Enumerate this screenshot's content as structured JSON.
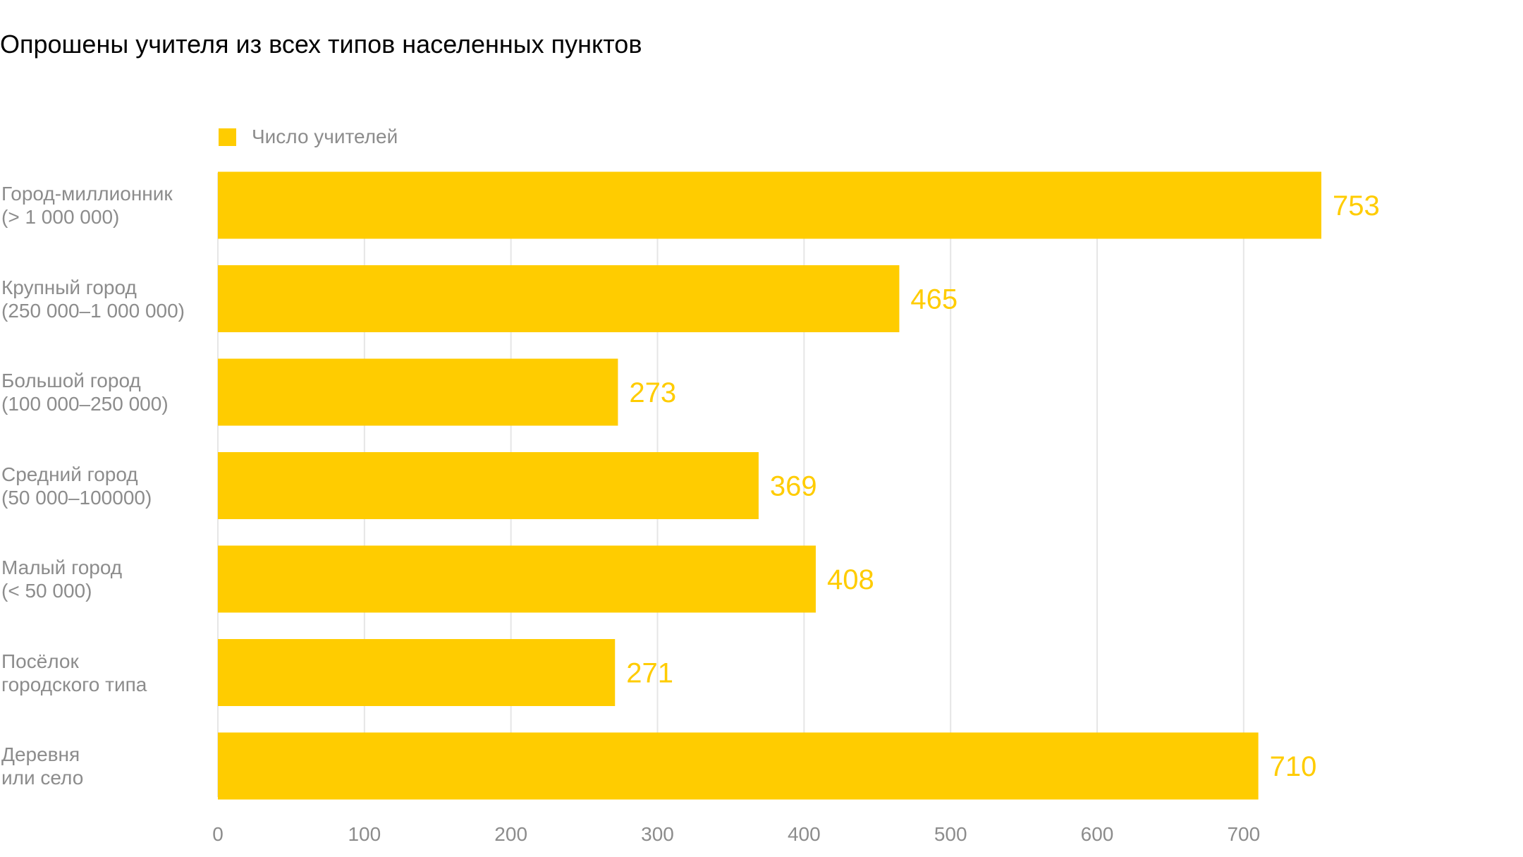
{
  "chart_data": {
    "type": "bar",
    "orientation": "horizontal",
    "title": "Опрошены учителя из всех типов населенных пунктов",
    "legend": {
      "placement": "top-left",
      "entries": [
        "Число учителей"
      ]
    },
    "categories": [
      "Город-миллионник\n(> 1 000 000)",
      "Крупный город\n(250 000–1 000 000)",
      "Большой город\n(100 000–250 000)",
      "Средний город\n(50 000–100000)",
      "Малый город\n(< 50 000)",
      "Посёлок\nгородского типа",
      "Деревня\nили село"
    ],
    "series": [
      {
        "name": "Число учителей",
        "values": [
          753,
          465,
          273,
          369,
          408,
          271,
          710
        ]
      }
    ],
    "value_labels": [
      "753",
      "465",
      "273",
      "369",
      "408",
      "271",
      "710"
    ],
    "xticks": [
      0,
      100,
      200,
      300,
      400,
      500,
      600,
      700
    ],
    "xtick_labels": [
      "0",
      "100",
      "200",
      "300",
      "400",
      "500",
      "600",
      "700"
    ],
    "xlim": [
      0,
      753
    ],
    "grid": "vertical",
    "colors": {
      "bar": "#ffcc00",
      "value_label": "#ffcc00",
      "grid": "#e6e6e6",
      "axis_text": "#8c8c8c"
    }
  }
}
